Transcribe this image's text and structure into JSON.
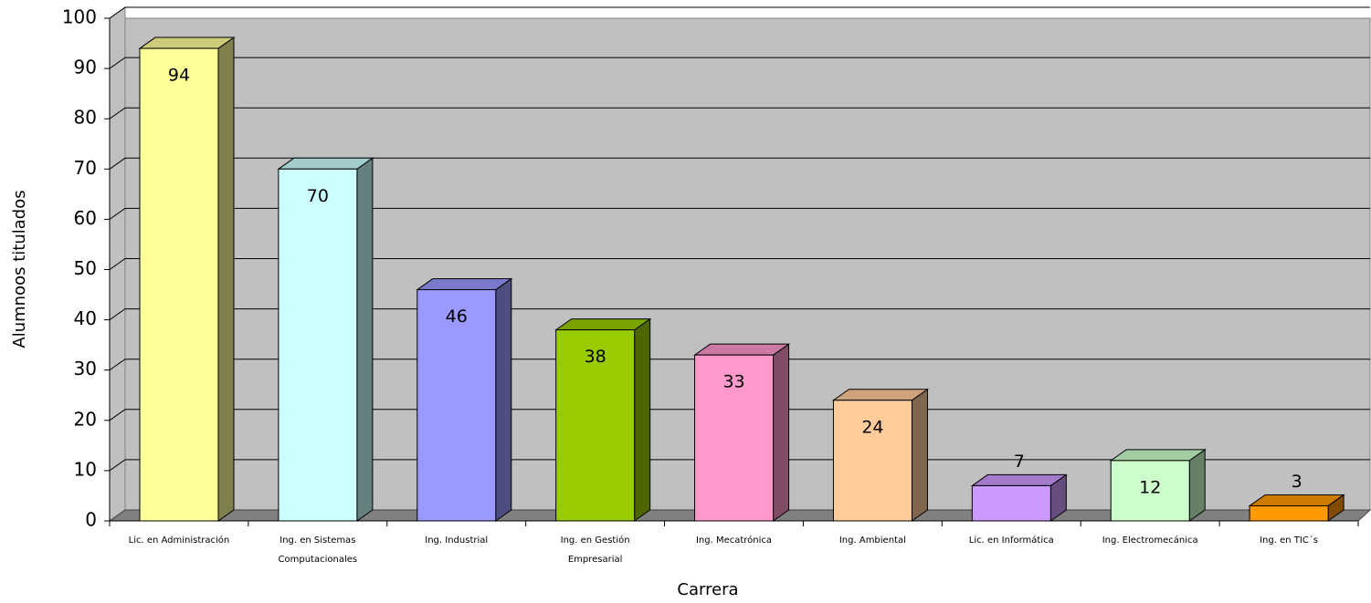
{
  "chart_data": {
    "type": "bar3d",
    "x_label": "Carrera",
    "y_label": "Alumnoos titulados",
    "categories": [
      "Lic. en Administración",
      "Ing. en Sistemas Computacionales",
      "Ing. Industrial",
      "Ing. en Gestión Empresarial",
      "Ing. Mecatrónica",
      "Ing. Ambiental",
      "Lic. en Informática",
      "Ing. Electromecánica",
      "Ing. en TIC´s"
    ],
    "values": [
      94,
      70,
      46,
      38,
      33,
      24,
      7,
      12,
      3
    ],
    "colors": [
      "#ffff99",
      "#ccffff",
      "#9999ff",
      "#99cc00",
      "#ff99cc",
      "#ffcc99",
      "#cc99ff",
      "#ccffcc",
      "#ff9900"
    ],
    "ylim": [
      0,
      100
    ],
    "yticks": [
      0,
      10,
      20,
      30,
      40,
      50,
      60,
      70,
      80,
      90,
      100
    ],
    "grid": true
  }
}
